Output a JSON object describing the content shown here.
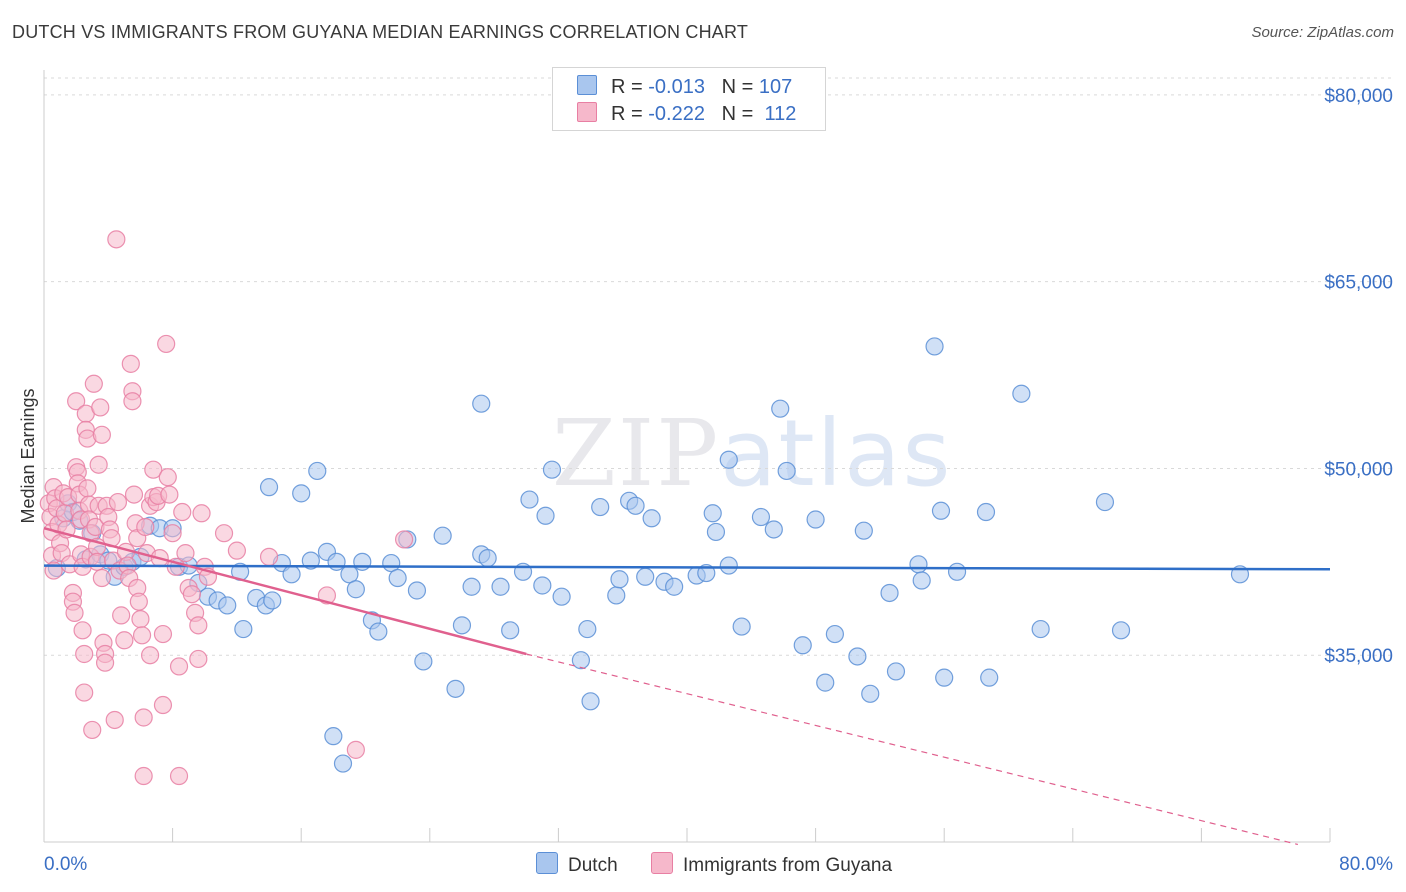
{
  "title": "DUTCH VS IMMIGRANTS FROM GUYANA MEDIAN EARNINGS CORRELATION CHART",
  "source": "Source: ZipAtlas.com",
  "watermark": {
    "zip": "ZIP",
    "atlas": "atlas"
  },
  "colors": {
    "dutch_fill": "#a9c6ee",
    "dutch_stroke": "#5b8fd6",
    "dutch_line": "#2f6fc8",
    "guyana_fill": "#f6b8cb",
    "guyana_stroke": "#e87fa3",
    "guyana_line": "#e0608e",
    "axis_label": "#3a6fc4",
    "grid": "#d9d9d9"
  },
  "legend": {
    "rows": [
      {
        "r_label": "R =",
        "r_value": "-0.013",
        "n_label": "N =",
        "n_value": "107"
      },
      {
        "r_label": "R =",
        "r_value": "-0.222",
        "n_label": "N =",
        "n_value": "112"
      }
    ]
  },
  "bottom_legend": {
    "dutch": "Dutch",
    "guyana": "Immigrants from Guyana"
  },
  "chart_data": {
    "type": "scatter",
    "title": "DUTCH VS IMMIGRANTS FROM GUYANA MEDIAN EARNINGS CORRELATION CHART",
    "xlabel": "",
    "ylabel": "Median Earnings",
    "x_tick_labels": [
      "0.0%",
      "80.0%"
    ],
    "y_tick_labels": [
      "$35,000",
      "$50,000",
      "$65,000",
      "$80,000"
    ],
    "y_ticks": [
      35000,
      50000,
      65000,
      80000
    ],
    "xlim": [
      0,
      80
    ],
    "ylim": [
      20000,
      82000
    ],
    "grid": true,
    "legend_placement": "top-center",
    "series": [
      {
        "name": "Dutch",
        "trend": {
          "x": [
            0,
            80
          ],
          "y": [
            42200,
            41900
          ],
          "dashed_from": null
        },
        "points": [
          [
            0.8,
            42000
          ],
          [
            1.2,
            46000
          ],
          [
            1.5,
            47200
          ],
          [
            1.8,
            46500
          ],
          [
            2.2,
            45800
          ],
          [
            2.6,
            42700
          ],
          [
            3.0,
            44800
          ],
          [
            3.5,
            43100
          ],
          [
            4.0,
            42600
          ],
          [
            4.4,
            41300
          ],
          [
            5.0,
            42100
          ],
          [
            5.5,
            42500
          ],
          [
            6.0,
            42900
          ],
          [
            6.6,
            45400
          ],
          [
            7.2,
            45200
          ],
          [
            8.0,
            45200
          ],
          [
            8.4,
            42100
          ],
          [
            9.0,
            42200
          ],
          [
            9.6,
            40800
          ],
          [
            10.2,
            39700
          ],
          [
            10.8,
            39400
          ],
          [
            11.4,
            39000
          ],
          [
            12.2,
            41700
          ],
          [
            12.4,
            37100
          ],
          [
            13.2,
            39600
          ],
          [
            13.8,
            39000
          ],
          [
            14.2,
            39400
          ],
          [
            14.0,
            48500
          ],
          [
            14.8,
            42400
          ],
          [
            15.4,
            41500
          ],
          [
            16.0,
            48000
          ],
          [
            16.6,
            42600
          ],
          [
            17.0,
            49800
          ],
          [
            17.6,
            43300
          ],
          [
            18.2,
            42500
          ],
          [
            18.0,
            28500
          ],
          [
            18.6,
            26300
          ],
          [
            19.0,
            41500
          ],
          [
            19.4,
            40300
          ],
          [
            19.8,
            42500
          ],
          [
            20.4,
            37800
          ],
          [
            20.8,
            36900
          ],
          [
            21.6,
            42400
          ],
          [
            22.0,
            41200
          ],
          [
            22.6,
            44300
          ],
          [
            23.2,
            40200
          ],
          [
            23.6,
            34500
          ],
          [
            24.8,
            44600
          ],
          [
            25.6,
            32300
          ],
          [
            26.0,
            37400
          ],
          [
            26.6,
            40500
          ],
          [
            27.2,
            43100
          ],
          [
            27.6,
            42800
          ],
          [
            27.2,
            55200
          ],
          [
            28.4,
            40500
          ],
          [
            29.0,
            37000
          ],
          [
            29.8,
            41700
          ],
          [
            30.2,
            47500
          ],
          [
            31.0,
            40600
          ],
          [
            31.2,
            46200
          ],
          [
            31.6,
            49900
          ],
          [
            32.2,
            39700
          ],
          [
            33.4,
            34600
          ],
          [
            34.0,
            31300
          ],
          [
            33.8,
            37100
          ],
          [
            34.6,
            46900
          ],
          [
            35.6,
            39800
          ],
          [
            35.8,
            41100
          ],
          [
            36.4,
            47400
          ],
          [
            36.8,
            47000
          ],
          [
            37.4,
            41300
          ],
          [
            37.8,
            46000
          ],
          [
            38.6,
            40900
          ],
          [
            39.2,
            40500
          ],
          [
            40.6,
            41400
          ],
          [
            41.2,
            41600
          ],
          [
            41.6,
            46400
          ],
          [
            41.8,
            44900
          ],
          [
            42.6,
            42200
          ],
          [
            42.6,
            50700
          ],
          [
            43.4,
            37300
          ],
          [
            44.6,
            46100
          ],
          [
            45.4,
            45100
          ],
          [
            45.8,
            54800
          ],
          [
            46.2,
            49800
          ],
          [
            47.2,
            35800
          ],
          [
            48.0,
            45900
          ],
          [
            48.6,
            32800
          ],
          [
            49.2,
            36700
          ],
          [
            50.6,
            34900
          ],
          [
            51.0,
            45000
          ],
          [
            51.4,
            31900
          ],
          [
            52.6,
            40000
          ],
          [
            53.0,
            33700
          ],
          [
            54.4,
            42300
          ],
          [
            54.6,
            41000
          ],
          [
            55.4,
            59800
          ],
          [
            55.8,
            46600
          ],
          [
            56.0,
            33200
          ],
          [
            56.8,
            41700
          ],
          [
            58.6,
            46500
          ],
          [
            58.8,
            33200
          ],
          [
            60.8,
            56000
          ],
          [
            62.0,
            37100
          ],
          [
            66.0,
            47300
          ],
          [
            67.0,
            37000
          ],
          [
            74.4,
            41500
          ]
        ]
      },
      {
        "name": "Immigrants from Guyana",
        "trend": {
          "x": [
            0,
            30,
            78
          ],
          "y": [
            45200,
            35100,
            19800
          ],
          "dashed_from": 30
        },
        "points": [
          [
            0.3,
            47200
          ],
          [
            0.4,
            46100
          ],
          [
            0.5,
            44900
          ],
          [
            0.5,
            43000
          ],
          [
            0.6,
            48500
          ],
          [
            0.6,
            41800
          ],
          [
            0.7,
            47600
          ],
          [
            0.8,
            46800
          ],
          [
            0.9,
            45500
          ],
          [
            1.0,
            44000
          ],
          [
            1.1,
            43200
          ],
          [
            1.2,
            48000
          ],
          [
            1.3,
            46400
          ],
          [
            1.4,
            45100
          ],
          [
            1.5,
            47700
          ],
          [
            1.6,
            42300
          ],
          [
            1.8,
            40000
          ],
          [
            1.8,
            39300
          ],
          [
            1.9,
            38400
          ],
          [
            2.0,
            55400
          ],
          [
            2.0,
            50100
          ],
          [
            2.1,
            49700
          ],
          [
            2.1,
            48800
          ],
          [
            2.2,
            47900
          ],
          [
            2.2,
            46600
          ],
          [
            2.3,
            45900
          ],
          [
            2.3,
            43100
          ],
          [
            2.4,
            42100
          ],
          [
            2.4,
            37000
          ],
          [
            2.5,
            35100
          ],
          [
            2.5,
            32000
          ],
          [
            2.6,
            54400
          ],
          [
            2.6,
            53100
          ],
          [
            2.7,
            52400
          ],
          [
            2.7,
            48400
          ],
          [
            2.8,
            47100
          ],
          [
            2.8,
            45900
          ],
          [
            2.9,
            44800
          ],
          [
            2.9,
            42900
          ],
          [
            3.0,
            29000
          ],
          [
            3.1,
            56800
          ],
          [
            3.2,
            45300
          ],
          [
            3.3,
            43700
          ],
          [
            3.3,
            42500
          ],
          [
            3.4,
            50300
          ],
          [
            3.4,
            47000
          ],
          [
            3.5,
            54900
          ],
          [
            3.6,
            52700
          ],
          [
            3.6,
            41200
          ],
          [
            3.7,
            36000
          ],
          [
            3.8,
            35100
          ],
          [
            3.8,
            34400
          ],
          [
            3.9,
            47000
          ],
          [
            4.0,
            46100
          ],
          [
            4.1,
            45100
          ],
          [
            4.2,
            44400
          ],
          [
            4.3,
            42600
          ],
          [
            4.4,
            29800
          ],
          [
            4.5,
            68400
          ],
          [
            4.6,
            47300
          ],
          [
            4.7,
            41800
          ],
          [
            4.8,
            38200
          ],
          [
            5.0,
            36200
          ],
          [
            5.1,
            43300
          ],
          [
            5.2,
            42200
          ],
          [
            5.3,
            41200
          ],
          [
            5.4,
            58400
          ],
          [
            5.5,
            56200
          ],
          [
            5.5,
            55400
          ],
          [
            5.6,
            47900
          ],
          [
            5.7,
            45600
          ],
          [
            5.8,
            44400
          ],
          [
            5.8,
            40400
          ],
          [
            5.9,
            39300
          ],
          [
            6.0,
            37900
          ],
          [
            6.1,
            36600
          ],
          [
            6.2,
            30000
          ],
          [
            6.2,
            25300
          ],
          [
            6.3,
            45300
          ],
          [
            6.4,
            43200
          ],
          [
            6.6,
            47000
          ],
          [
            6.6,
            35000
          ],
          [
            6.8,
            49900
          ],
          [
            6.8,
            47700
          ],
          [
            7.0,
            47300
          ],
          [
            7.1,
            47800
          ],
          [
            7.2,
            42800
          ],
          [
            7.4,
            36700
          ],
          [
            7.4,
            31000
          ],
          [
            7.6,
            60000
          ],
          [
            7.7,
            49300
          ],
          [
            7.8,
            47900
          ],
          [
            8.0,
            44800
          ],
          [
            8.2,
            42100
          ],
          [
            8.4,
            34100
          ],
          [
            8.4,
            25300
          ],
          [
            8.6,
            46500
          ],
          [
            8.8,
            43200
          ],
          [
            9.0,
            40400
          ],
          [
            9.2,
            39900
          ],
          [
            9.4,
            38400
          ],
          [
            9.6,
            37400
          ],
          [
            9.6,
            34700
          ],
          [
            9.8,
            46400
          ],
          [
            10.0,
            42100
          ],
          [
            10.2,
            41300
          ],
          [
            11.2,
            44800
          ],
          [
            12.0,
            43400
          ],
          [
            14.0,
            42900
          ],
          [
            17.6,
            39800
          ],
          [
            19.4,
            27400
          ],
          [
            22.4,
            44300
          ]
        ]
      }
    ]
  }
}
